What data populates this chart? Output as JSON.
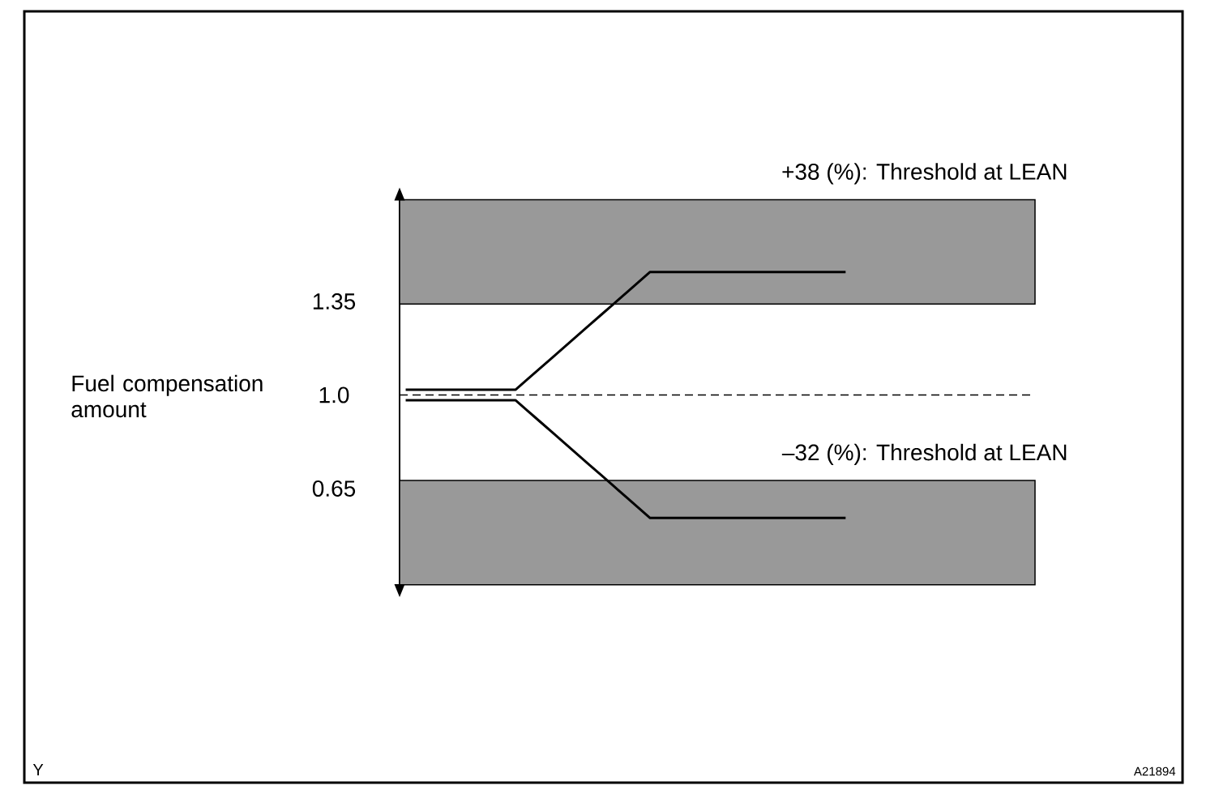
{
  "chart_data": {
    "type": "line",
    "ylabel": "Fuel compensation amount",
    "categories": [
      null,
      null,
      null,
      null,
      null,
      null,
      null,
      null,
      null,
      null,
      null,
      null,
      null,
      null,
      null,
      null,
      null,
      null,
      null,
      null,
      null,
      null,
      null,
      null,
      null,
      null,
      null,
      null,
      null,
      null,
      null,
      null,
      null,
      null,
      null,
      null,
      null,
      null,
      null,
      null,
      null,
      null,
      null,
      null,
      null,
      null,
      null,
      null,
      null,
      null,
      null,
      null
    ],
    "series": [
      {
        "color": "#000000",
        "values": [
          1.02,
          1.02,
          1.02,
          1.02,
          1.02,
          1.02,
          1.02,
          1.02,
          1.02,
          1.02,
          1.06,
          1.1,
          1.14,
          1.18,
          1.22,
          1.26,
          1.3,
          1.34,
          1.38,
          1.42,
          1.46,
          1.46,
          1.46,
          1.46,
          1.46,
          1.46,
          1.46,
          1.46,
          1.46,
          1.46,
          1.46,
          1.46,
          1.46,
          1.46,
          1.46,
          1.46,
          1.46,
          null,
          null,
          null,
          null,
          null,
          null,
          null,
          null,
          null,
          null,
          null,
          null,
          null,
          null,
          null
        ]
      },
      {
        "color": "#000000",
        "values": [
          0.98,
          0.98,
          0.98,
          0.98,
          0.98,
          0.98,
          0.98,
          0.98,
          0.98,
          0.98,
          0.94,
          0.9,
          0.86,
          0.82,
          0.78,
          0.74,
          0.7,
          0.66,
          0.62,
          0.58,
          0.54,
          0.54,
          0.54,
          0.54,
          0.54,
          0.54,
          0.54,
          0.54,
          0.54,
          0.54,
          0.54,
          0.54,
          0.54,
          0.54,
          0.54,
          0.54,
          0.54,
          null,
          null,
          null,
          null,
          null,
          null,
          null,
          null,
          null,
          null,
          null,
          null,
          null,
          null,
          null
        ]
      }
    ],
    "ylim": [
      0.29,
      1.73
    ],
    "yticks": [
      0.65,
      {
        "value": 1.0,
        "label": "1.0"
      },
      1.35
    ],
    "tick_labels": "y",
    "marker": "none",
    "line_style": "solid",
    "ref_lines": [
      {
        "axis": "y",
        "value": 1.0,
        "line_style": "dashed",
        "color": "#000000"
      }
    ],
    "bands": [
      {
        "axis": "y",
        "from": 1.34,
        "to": 1.73,
        "label": "+38 (%): Threshold at LEAN",
        "color": "#999999"
      },
      {
        "axis": "y",
        "from": 0.29,
        "to": 0.68,
        "label": "–32 (%): Threshold at LEAN",
        "color": "#999999"
      }
    ],
    "annotations": [
      "Y",
      "A21894"
    ]
  }
}
